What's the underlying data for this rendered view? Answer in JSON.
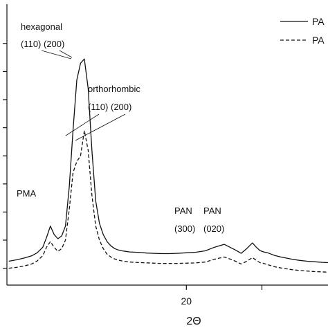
{
  "chart_data": {
    "type": "line",
    "xlabel": "2Θ",
    "ylabel": "",
    "xlim": [
      10.5,
      27.5
    ],
    "ylim": [
      0,
      100
    ],
    "x_ticks": [
      {
        "value": 20,
        "label": "20"
      },
      {
        "value": 24,
        "label": ""
      }
    ],
    "y_ticks": [
      6,
      16,
      26,
      36,
      46,
      56,
      66,
      76,
      86
    ],
    "legend": {
      "position": "top-right",
      "entries": [
        {
          "label": "PA",
          "line_style": "solid"
        },
        {
          "label": "PA",
          "line_style": "dashed"
        }
      ]
    },
    "annotations": [
      {
        "id": "hexagonal",
        "lines": [
          "hexagonal",
          "(110) (200)"
        ]
      },
      {
        "id": "orthorhombic",
        "lines": [
          "orthorhombic",
          "(110) (200)"
        ]
      },
      {
        "id": "pma",
        "lines": [
          "PMA"
        ]
      },
      {
        "id": "pan-300",
        "lines": [
          "PAN",
          "(300)"
        ]
      },
      {
        "id": "pan-020",
        "lines": [
          "PAN",
          "(020)"
        ]
      }
    ],
    "series": [
      {
        "line_style": "solid",
        "x": [
          10.6,
          11.0,
          11.4,
          11.8,
          12.1,
          12.4,
          12.6,
          12.8,
          13.0,
          13.2,
          13.4,
          13.6,
          13.8,
          14.0,
          14.2,
          14.4,
          14.6,
          14.8,
          15.0,
          15.2,
          15.4,
          15.6,
          15.8,
          16.0,
          16.2,
          16.4,
          16.6,
          16.8,
          17.0,
          17.3,
          17.6,
          17.9,
          18.3,
          18.7,
          19.1,
          19.5,
          20.0,
          20.5,
          21.0,
          21.5,
          22.0,
          22.3,
          22.6,
          22.9,
          23.2,
          23.5,
          23.7,
          23.9,
          24.1,
          24.3,
          24.5,
          24.7,
          25.0,
          25.3,
          25.6,
          26.0,
          26.4,
          26.8,
          27.2,
          27.5
        ],
        "y": [
          8.5,
          9.0,
          9.6,
          10.4,
          11.5,
          13.5,
          17.0,
          21.0,
          18.0,
          16.5,
          17.5,
          21.0,
          35.0,
          55.0,
          73.0,
          79.0,
          80.5,
          70.0,
          48.0,
          30.0,
          22.0,
          18.0,
          15.5,
          14.0,
          13.0,
          12.5,
          12.2,
          12.0,
          11.8,
          11.7,
          11.6,
          11.4,
          11.3,
          11.2,
          11.2,
          11.3,
          11.5,
          11.7,
          12.2,
          13.5,
          14.5,
          13.5,
          12.5,
          11.3,
          13.0,
          15.0,
          13.5,
          12.3,
          11.8,
          11.5,
          11.0,
          10.5,
          10.0,
          9.6,
          9.2,
          8.8,
          8.5,
          8.3,
          8.1,
          8.0
        ]
      },
      {
        "line_style": "dashed",
        "x": [
          10.6,
          11.0,
          11.4,
          11.8,
          12.1,
          12.4,
          12.6,
          12.8,
          13.0,
          13.2,
          13.4,
          13.6,
          13.8,
          14.0,
          14.2,
          14.4,
          14.6,
          14.8,
          15.0,
          15.2,
          15.4,
          15.6,
          15.8,
          16.0,
          16.2,
          16.4,
          16.6,
          16.8,
          17.0,
          17.3,
          17.6,
          17.9,
          18.3,
          18.7,
          19.1,
          19.5,
          20.0,
          20.5,
          21.0,
          21.5,
          22.0,
          22.3,
          22.6,
          22.9,
          23.2,
          23.5,
          23.7,
          23.9,
          24.1,
          24.3,
          24.5,
          24.7,
          25.0,
          25.3,
          25.6,
          26.0,
          26.4,
          26.8,
          27.2,
          27.5
        ],
        "y": [
          6.0,
          6.3,
          6.8,
          7.5,
          8.6,
          10.5,
          13.5,
          15.5,
          13.5,
          12.0,
          13.0,
          16.0,
          27.0,
          40.0,
          44.0,
          46.0,
          55.0,
          48.0,
          32.0,
          21.0,
          16.0,
          13.0,
          11.0,
          10.0,
          9.3,
          8.9,
          8.6,
          8.4,
          8.2,
          8.1,
          8.0,
          7.9,
          7.8,
          7.7,
          7.7,
          7.7,
          7.8,
          7.9,
          8.2,
          9.2,
          10.0,
          9.3,
          8.5,
          7.5,
          8.5,
          9.8,
          8.8,
          8.0,
          7.7,
          7.3,
          6.9,
          6.5,
          6.1,
          5.8,
          5.5,
          5.2,
          5.0,
          4.8,
          4.7,
          4.6
        ]
      }
    ]
  }
}
